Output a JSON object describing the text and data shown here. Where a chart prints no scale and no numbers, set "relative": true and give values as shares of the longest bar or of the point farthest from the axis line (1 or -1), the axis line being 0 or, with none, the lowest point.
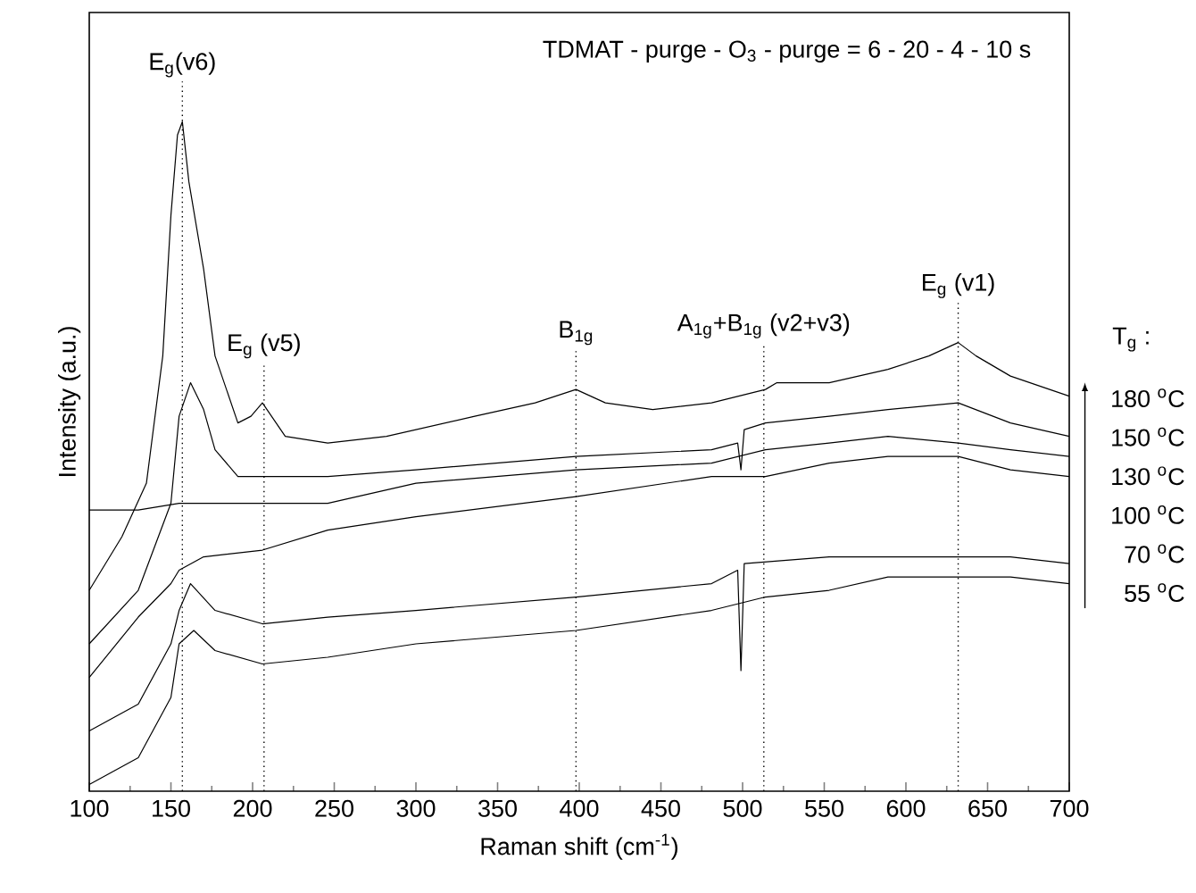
{
  "chart_data": {
    "type": "line",
    "relative": true,
    "xlabel": "Raman shift (cm$^{-1}$)",
    "ylabel": "Intensity (a.u.)",
    "legend_title": "T$_{g}$ :",
    "legend": "right",
    "line_style": "solid",
    "xlim": [
      100,
      700
    ],
    "xticks": [
      100,
      150,
      200,
      250,
      300,
      350,
      400,
      450,
      500,
      550,
      600,
      650,
      700
    ],
    "annotations": [
      "TDMAT - purge - O$_{3}$ - purge = 6 - 20 - 4 - 10 s"
    ],
    "ref_lines": [
      {
        "axis": "x",
        "value": 157,
        "label": "E$_{g}$(v6)",
        "line_style": "dotted"
      },
      {
        "axis": "x",
        "value": 207,
        "label": "E$_{g}$ (v5)",
        "line_style": "dotted"
      },
      {
        "axis": "x",
        "value": 398,
        "label": "B$_{1g}$",
        "line_style": "dotted"
      },
      {
        "axis": "x",
        "value": 513,
        "label": "A$_{1g}$+B$_{1g}$ (v2+v3)",
        "line_style": "dotted"
      },
      {
        "axis": "x",
        "value": 632,
        "label": "E$_{g}$ (v1)",
        "line_style": "dotted"
      }
    ],
    "series": [
      {
        "name": "180 $^{o}$C",
        "color": "#000000",
        "x": [
          100,
          120,
          135,
          145,
          150,
          154,
          157,
          161,
          170,
          177,
          191,
          199,
          206,
          220,
          246,
          282,
          336,
          373,
          398,
          416,
          445,
          481,
          514,
          521,
          553,
          589,
          614,
          632,
          643,
          664,
          700
        ],
        "values": [
          0.3,
          0.38,
          0.46,
          0.65,
          0.86,
          0.98,
          1.0,
          0.91,
          0.78,
          0.65,
          0.55,
          0.56,
          0.58,
          0.53,
          0.52,
          0.53,
          0.56,
          0.58,
          0.6,
          0.58,
          0.57,
          0.58,
          0.6,
          0.61,
          0.61,
          0.63,
          0.65,
          0.67,
          0.65,
          0.62,
          0.59
        ]
      },
      {
        "name": "150 $^{o}$C",
        "color": "#000000",
        "x": [
          100,
          130,
          150,
          155,
          162,
          170,
          177,
          191,
          206,
          246,
          300,
          398,
          481,
          497,
          499,
          501,
          514,
          553,
          589,
          632,
          664,
          700
        ],
        "values": [
          0.22,
          0.3,
          0.43,
          0.56,
          0.61,
          0.57,
          0.51,
          0.47,
          0.47,
          0.47,
          0.48,
          0.5,
          0.51,
          0.52,
          0.48,
          0.54,
          0.55,
          0.56,
          0.57,
          0.58,
          0.55,
          0.53
        ]
      },
      {
        "name": "130 $^{o}$C",
        "color": "#000000",
        "x": [
          100,
          130,
          155,
          206,
          246,
          300,
          398,
          481,
          514,
          553,
          589,
          632,
          664,
          700
        ],
        "values": [
          0.42,
          0.42,
          0.43,
          0.43,
          0.43,
          0.46,
          0.48,
          0.49,
          0.51,
          0.52,
          0.53,
          0.52,
          0.51,
          0.5
        ]
      },
      {
        "name": "100 $^{o}$C",
        "color": "#000000",
        "x": [
          100,
          130,
          150,
          155,
          170,
          206,
          246,
          300,
          398,
          481,
          514,
          553,
          589,
          632,
          664,
          700
        ],
        "values": [
          0.17,
          0.26,
          0.31,
          0.33,
          0.35,
          0.36,
          0.39,
          0.41,
          0.44,
          0.47,
          0.47,
          0.49,
          0.5,
          0.5,
          0.48,
          0.47
        ]
      },
      {
        "name": "70 $^{o}$C",
        "color": "#000000",
        "x": [
          100,
          130,
          150,
          155,
          162,
          177,
          206,
          246,
          300,
          398,
          481,
          497,
          499,
          501,
          553,
          589,
          632,
          664,
          700
        ],
        "values": [
          0.09,
          0.13,
          0.22,
          0.27,
          0.31,
          0.27,
          0.25,
          0.26,
          0.27,
          0.29,
          0.31,
          0.33,
          0.18,
          0.34,
          0.35,
          0.35,
          0.35,
          0.35,
          0.34
        ]
      },
      {
        "name": "55 $^{o}$C",
        "color": "#000000",
        "x": [
          100,
          130,
          150,
          155,
          164,
          177,
          206,
          246,
          300,
          398,
          481,
          514,
          553,
          589,
          632,
          664,
          700
        ],
        "values": [
          0.01,
          0.05,
          0.14,
          0.22,
          0.24,
          0.21,
          0.19,
          0.2,
          0.22,
          0.24,
          0.27,
          0.29,
          0.3,
          0.32,
          0.32,
          0.32,
          0.31
        ]
      }
    ]
  }
}
